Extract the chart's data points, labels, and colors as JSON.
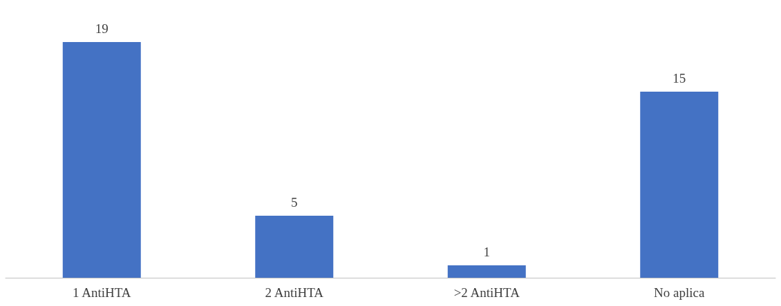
{
  "chart_data": {
    "type": "bar",
    "categories": [
      "1 AntiHTA",
      "2 AntiHTA",
      ">2 AntiHTA",
      "No aplica"
    ],
    "values": [
      19,
      5,
      1,
      15
    ],
    "color": "#4472c4",
    "data_labels": true
  }
}
